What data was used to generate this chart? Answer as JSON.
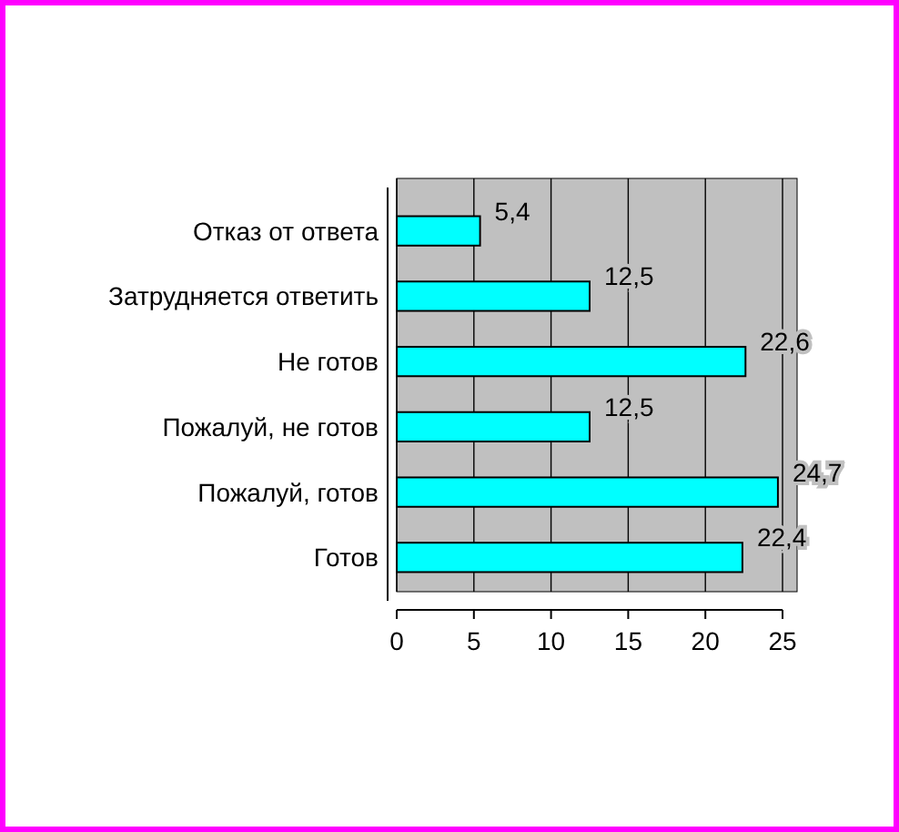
{
  "chart_data": {
    "type": "bar",
    "orientation": "horizontal",
    "categories": [
      "Отказ от ответа",
      "Затрудняется ответить",
      "Не готов",
      "Пожалуй, не готов",
      "Пожалуй, готов",
      "Готов"
    ],
    "values": [
      5.4,
      12.5,
      22.6,
      12.5,
      24.7,
      22.4
    ],
    "value_labels": [
      "5,4",
      "12,5",
      "22,6",
      "12,5",
      "24,7",
      "22,4"
    ],
    "color": "#00ffff",
    "xlim": [
      0,
      25
    ],
    "xticks": [
      0,
      5,
      10,
      15,
      20,
      25
    ],
    "grid": "x"
  }
}
